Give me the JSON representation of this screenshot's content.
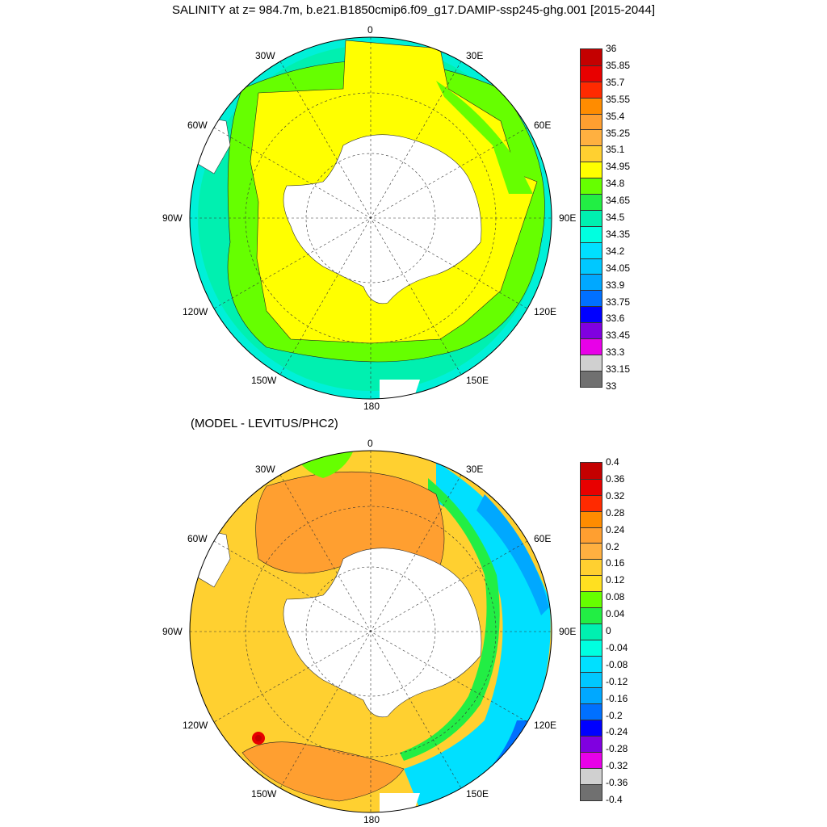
{
  "title": "SALINITY at z= 984.7m, b.e21.B1850cmip6.f09_g17.DAMIP-ssp245-ghg.001 [2015-2044]",
  "diff_title": "(MODEL - LEVITUS/PHC2)",
  "longitude_labels": {
    "top": "0",
    "bottom": "180",
    "left": "90W",
    "right": "90E",
    "upper_left": "30W",
    "upper_right": "30E",
    "mid_left": "60W",
    "mid_right": "60E",
    "low_left": "120W",
    "low_right": "120E",
    "bottom_left": "150W",
    "bottom_right": "150E"
  },
  "colorbar_top": {
    "labels": [
      "36",
      "35.85",
      "35.7",
      "35.55",
      "35.4",
      "35.25",
      "35.1",
      "34.95",
      "34.8",
      "34.65",
      "34.5",
      "34.35",
      "34.2",
      "34.05",
      "33.9",
      "33.75",
      "33.6",
      "33.45",
      "33.3",
      "33.15",
      "33"
    ],
    "colors": [
      "#c40000",
      "#e80000",
      "#ff2a00",
      "#ff8c00",
      "#ff9f30",
      "#ffb040",
      "#ffd030",
      "#ffff00",
      "#66ff00",
      "#22ee44",
      "#00f0b0",
      "#00ffe0",
      "#00e0ff",
      "#00c8ff",
      "#00a8ff",
      "#0070ff",
      "#0000ff",
      "#8000e0",
      "#e800e8",
      "#d0d0d0",
      "#707070"
    ]
  },
  "colorbar_diff": {
    "labels": [
      "0.4",
      "0.36",
      "0.32",
      "0.28",
      "0.24",
      "0.2",
      "0.16",
      "0.12",
      "0.08",
      "0.04",
      "0",
      "-0.04",
      "-0.08",
      "-0.12",
      "-0.16",
      "-0.2",
      "-0.24",
      "-0.28",
      "-0.32",
      "-0.36",
      "-0.4"
    ],
    "colors": [
      "#c40000",
      "#e80000",
      "#ff2a00",
      "#ff8c00",
      "#ff9f30",
      "#ffb040",
      "#ffd030",
      "#ffe020",
      "#66ff00",
      "#22ee44",
      "#00f0b0",
      "#00ffe0",
      "#00e0ff",
      "#00c8ff",
      "#00a8ff",
      "#0070ff",
      "#0000ff",
      "#8000e0",
      "#e800e8",
      "#d0d0d0",
      "#707070"
    ]
  }
}
